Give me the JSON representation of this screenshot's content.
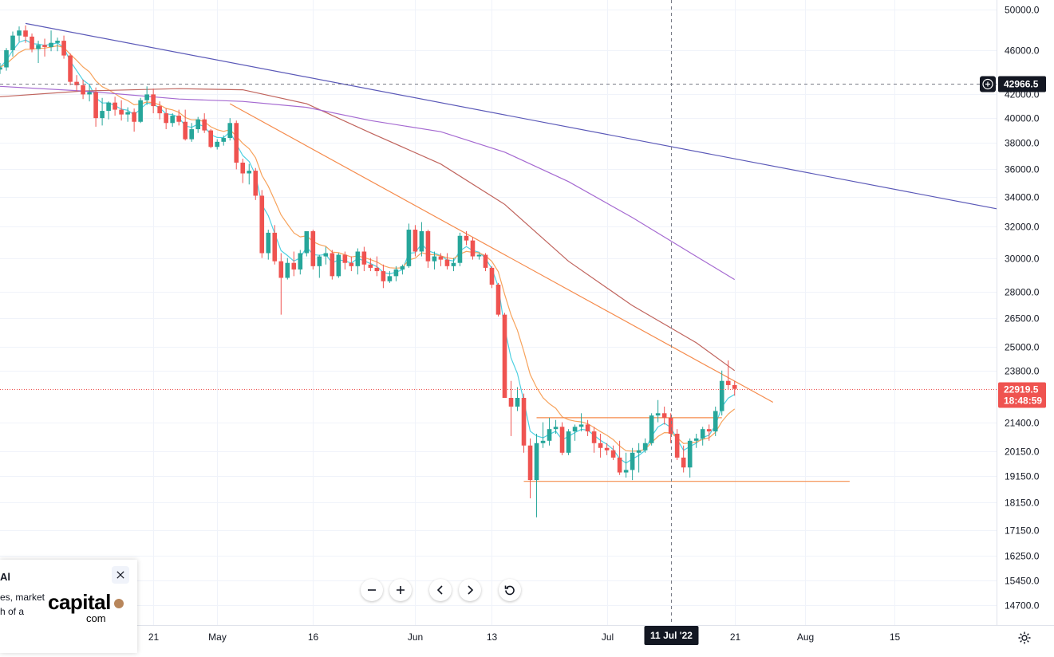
{
  "chart_data": {
    "type": "candlestick",
    "y_axis": {
      "tick_labels": [
        "50000.0",
        "46000.0",
        "42000.0",
        "40000.0",
        "38000.0",
        "36000.0",
        "34000.0",
        "32000.0",
        "30000.0",
        "28000.0",
        "26500.0",
        "25000.0",
        "23800.0",
        "21400.0",
        "20150.0",
        "19150.0",
        "18150.0",
        "17150.0",
        "16250.0",
        "15450.0",
        "14700.0"
      ],
      "log_scale": true,
      "range": [
        14100,
        51000
      ]
    },
    "x_axis": {
      "tick_labels": [
        "21",
        "May",
        "16",
        "Jun",
        "13",
        "Jul",
        "21",
        "Aug",
        "15"
      ],
      "tick_dates": [
        "2022-04-21",
        "2022-05-01",
        "2022-05-16",
        "2022-06-01",
        "2022-06-13",
        "2022-07-01",
        "2022-07-21",
        "2022-08-01",
        "2022-08-15"
      ],
      "range": [
        "2022-03-28",
        "2022-08-31"
      ],
      "crosshair_label": "11 Jul '22"
    },
    "crosshair": {
      "date": "2022-07-11",
      "price": 42966.5,
      "price_label": "42966.5"
    },
    "last_price": {
      "value": 22919.5,
      "label": "22919.5",
      "countdown": "18:48:59"
    },
    "colors": {
      "up": "#26a69a",
      "down": "#ef5350",
      "ema_fast": "#4dd0e1",
      "ema_mid": "#f7a35c",
      "ma_long1": "#c0645d",
      "ma_long2": "#a56ad1",
      "trendline_long": "#5b59b8",
      "trendline_short": "#f58b4c"
    },
    "series": [
      {
        "kind": "ohlc",
        "start_date": "2022-03-28",
        "ohlc": [
          [
            44200,
            44800,
            43800,
            44400
          ],
          [
            44400,
            46200,
            44100,
            46000
          ],
          [
            46000,
            47800,
            45400,
            47400
          ],
          [
            47400,
            48300,
            46800,
            47900
          ],
          [
            47900,
            48400,
            46700,
            47300
          ],
          [
            47300,
            47600,
            45800,
            46100
          ],
          [
            46100,
            46900,
            44800,
            46500
          ],
          [
            46500,
            47100,
            45400,
            46300
          ],
          [
            46300,
            47900,
            45900,
            46700
          ],
          [
            46700,
            47200,
            45900,
            46900
          ],
          [
            46900,
            47400,
            45200,
            45500
          ],
          [
            45500,
            45700,
            42800,
            43100
          ],
          [
            43100,
            43700,
            42300,
            42800
          ],
          [
            42800,
            43300,
            41600,
            42000
          ],
          [
            42000,
            42800,
            41400,
            42200
          ],
          [
            42200,
            42600,
            39300,
            40000
          ],
          [
            40000,
            41700,
            39400,
            40600
          ],
          [
            40600,
            41400,
            39900,
            41300
          ],
          [
            41300,
            41800,
            40200,
            40700
          ],
          [
            40700,
            41500,
            39800,
            40300
          ],
          [
            40300,
            40900,
            39700,
            40500
          ],
          [
            40500,
            40800,
            38900,
            39700
          ],
          [
            39700,
            41700,
            39600,
            41500
          ],
          [
            41500,
            42700,
            41100,
            42000
          ],
          [
            42000,
            42500,
            40400,
            41000
          ],
          [
            41000,
            41400,
            39900,
            40400
          ],
          [
            40400,
            40800,
            39100,
            39600
          ],
          [
            39600,
            40400,
            39300,
            40200
          ],
          [
            40200,
            40700,
            39400,
            39700
          ],
          [
            39700,
            40700,
            38200,
            38300
          ],
          [
            38300,
            39600,
            38100,
            39100
          ],
          [
            39100,
            40100,
            38800,
            39900
          ],
          [
            39900,
            40400,
            38800,
            39000
          ],
          [
            39000,
            39100,
            37600,
            37700
          ],
          [
            37700,
            38300,
            37500,
            38100
          ],
          [
            38100,
            38600,
            37800,
            38400
          ],
          [
            38400,
            40000,
            38200,
            39600
          ],
          [
            39600,
            39800,
            36000,
            36500
          ],
          [
            36500,
            36800,
            35000,
            35700
          ],
          [
            35700,
            36400,
            34900,
            35900
          ],
          [
            35900,
            36100,
            33800,
            34100
          ],
          [
            34100,
            34500,
            30000,
            30300
          ],
          [
            30300,
            31800,
            29900,
            31600
          ],
          [
            31600,
            32100,
            29600,
            29800
          ],
          [
            29800,
            30300,
            26700,
            28800
          ],
          [
            28800,
            30000,
            28700,
            29700
          ],
          [
            29700,
            30400,
            28900,
            29300
          ],
          [
            29300,
            30500,
            29000,
            30300
          ],
          [
            30300,
            31700,
            30100,
            31700
          ],
          [
            31700,
            31800,
            29300,
            29500
          ],
          [
            29500,
            30200,
            28800,
            30100
          ],
          [
            30100,
            30700,
            29600,
            30300
          ],
          [
            30300,
            30500,
            28700,
            28900
          ],
          [
            28900,
            30300,
            28800,
            30200
          ],
          [
            30200,
            30400,
            29300,
            29700
          ],
          [
            29700,
            30100,
            29200,
            29500
          ],
          [
            29500,
            30600,
            29000,
            30400
          ],
          [
            30400,
            30700,
            29200,
            29600
          ],
          [
            29600,
            30000,
            29200,
            29400
          ],
          [
            29400,
            30100,
            28900,
            29200
          ],
          [
            29200,
            29600,
            28200,
            28600
          ],
          [
            28600,
            29200,
            28500,
            28900
          ],
          [
            28900,
            29500,
            28600,
            29300
          ],
          [
            29300,
            29600,
            29000,
            29500
          ],
          [
            29500,
            32200,
            29400,
            31800
          ],
          [
            31800,
            32100,
            30100,
            30400
          ],
          [
            30400,
            32300,
            30100,
            31700
          ],
          [
            31700,
            31800,
            29400,
            29800
          ],
          [
            29800,
            30400,
            29300,
            30100
          ],
          [
            30100,
            30300,
            29500,
            29900
          ],
          [
            29900,
            30300,
            29300,
            29500
          ],
          [
            29500,
            30000,
            29200,
            29700
          ],
          [
            29700,
            31600,
            29500,
            31400
          ],
          [
            31400,
            31700,
            30800,
            31100
          ],
          [
            31100,
            31300,
            29900,
            30100
          ],
          [
            30100,
            30300,
            29900,
            30200
          ],
          [
            30200,
            30300,
            29200,
            29400
          ],
          [
            29400,
            29500,
            28200,
            28400
          ],
          [
            28400,
            28500,
            26600,
            26700
          ],
          [
            26700,
            26800,
            22700,
            22500
          ],
          [
            22500,
            23300,
            20800,
            22100
          ],
          [
            22100,
            23000,
            21900,
            22500
          ],
          [
            22500,
            22700,
            20100,
            20400
          ],
          [
            20400,
            20700,
            18300,
            19000
          ],
          [
            19000,
            20900,
            17600,
            20500
          ],
          [
            20500,
            21400,
            20300,
            20600
          ],
          [
            20600,
            21600,
            20400,
            21100
          ],
          [
            21100,
            21500,
            20900,
            21200
          ],
          [
            21200,
            21400,
            20000,
            20100
          ],
          [
            20100,
            21100,
            20000,
            21000
          ],
          [
            21000,
            21300,
            20600,
            21200
          ],
          [
            21200,
            21800,
            21000,
            21300
          ],
          [
            21300,
            21500,
            20800,
            21000
          ],
          [
            21000,
            21200,
            20100,
            20500
          ],
          [
            20500,
            20900,
            19900,
            20300
          ],
          [
            20300,
            20500,
            20000,
            20200
          ],
          [
            20200,
            20400,
            19800,
            19900
          ],
          [
            19900,
            20600,
            19200,
            19300
          ],
          [
            19300,
            20100,
            19100,
            19400
          ],
          [
            19400,
            20300,
            19000,
            20100
          ],
          [
            20100,
            20500,
            19300,
            20200
          ],
          [
            20200,
            20700,
            20100,
            20500
          ],
          [
            20500,
            21800,
            20400,
            21700
          ],
          [
            21700,
            22400,
            21400,
            21800
          ],
          [
            21800,
            22100,
            21300,
            21600
          ],
          [
            21600,
            21800,
            20500,
            20900
          ],
          [
            20900,
            21100,
            19800,
            19900
          ],
          [
            19900,
            20400,
            19300,
            19500
          ],
          [
            19500,
            20700,
            19100,
            20600
          ],
          [
            20600,
            20900,
            20300,
            20700
          ],
          [
            20700,
            21200,
            20400,
            21100
          ],
          [
            21100,
            21300,
            20600,
            21000
          ],
          [
            21000,
            22100,
            20800,
            21900
          ],
          [
            21900,
            23800,
            21700,
            23300
          ],
          [
            23300,
            24300,
            22900,
            23100
          ],
          [
            23100,
            23300,
            22600,
            22919.5
          ]
        ]
      },
      {
        "kind": "line",
        "role": "ema_fast"
      },
      {
        "kind": "line",
        "role": "ema_mid"
      },
      {
        "kind": "line",
        "role": "ma_long1",
        "points": [
          [
            "2022-03-28",
            41800
          ],
          [
            "2022-04-10",
            42300
          ],
          [
            "2022-04-25",
            42500
          ],
          [
            "2022-05-05",
            42400
          ],
          [
            "2022-05-15",
            41200
          ],
          [
            "2022-05-25",
            38800
          ],
          [
            "2022-06-05",
            36400
          ],
          [
            "2022-06-15",
            33500
          ],
          [
            "2022-06-25",
            29800
          ],
          [
            "2022-07-05",
            27200
          ],
          [
            "2022-07-15",
            25200
          ],
          [
            "2022-07-21",
            23800
          ]
        ]
      },
      {
        "kind": "line",
        "role": "ma_long2",
        "points": [
          [
            "2022-03-28",
            42700
          ],
          [
            "2022-04-10",
            42300
          ],
          [
            "2022-04-25",
            41600
          ],
          [
            "2022-05-05",
            41400
          ],
          [
            "2022-05-15",
            40900
          ],
          [
            "2022-05-25",
            39800
          ],
          [
            "2022-06-05",
            38900
          ],
          [
            "2022-06-15",
            37300
          ],
          [
            "2022-06-25",
            35100
          ],
          [
            "2022-07-05",
            32600
          ],
          [
            "2022-07-15",
            30100
          ],
          [
            "2022-07-21",
            28700
          ]
        ]
      },
      {
        "kind": "line",
        "role": "trendline_long",
        "points": [
          [
            "2022-04-01",
            48600
          ],
          [
            "2022-08-31",
            33200
          ]
        ]
      },
      {
        "kind": "line",
        "role": "trendline_short",
        "points": [
          [
            "2022-05-03",
            41200
          ],
          [
            "2022-07-27",
            22300
          ]
        ]
      },
      {
        "kind": "line",
        "role": "level_resistance",
        "points": [
          [
            "2022-06-20",
            21600
          ],
          [
            "2022-07-19",
            21600
          ]
        ]
      },
      {
        "kind": "line",
        "role": "level_support",
        "points": [
          [
            "2022-06-18",
            18950
          ],
          [
            "2022-08-08",
            18950
          ]
        ]
      }
    ]
  },
  "controls": {
    "zoom_out_icon": "minus-icon",
    "zoom_in_icon": "plus-icon",
    "scroll_left_icon": "chevron-left-icon",
    "scroll_right_icon": "chevron-right-icon",
    "reset_icon": "reset-icon",
    "settings_icon": "gear-icon"
  },
  "ad": {
    "title": "Al",
    "text": "es, market h of a",
    "logo": "capital",
    "logo_sub": "com"
  }
}
